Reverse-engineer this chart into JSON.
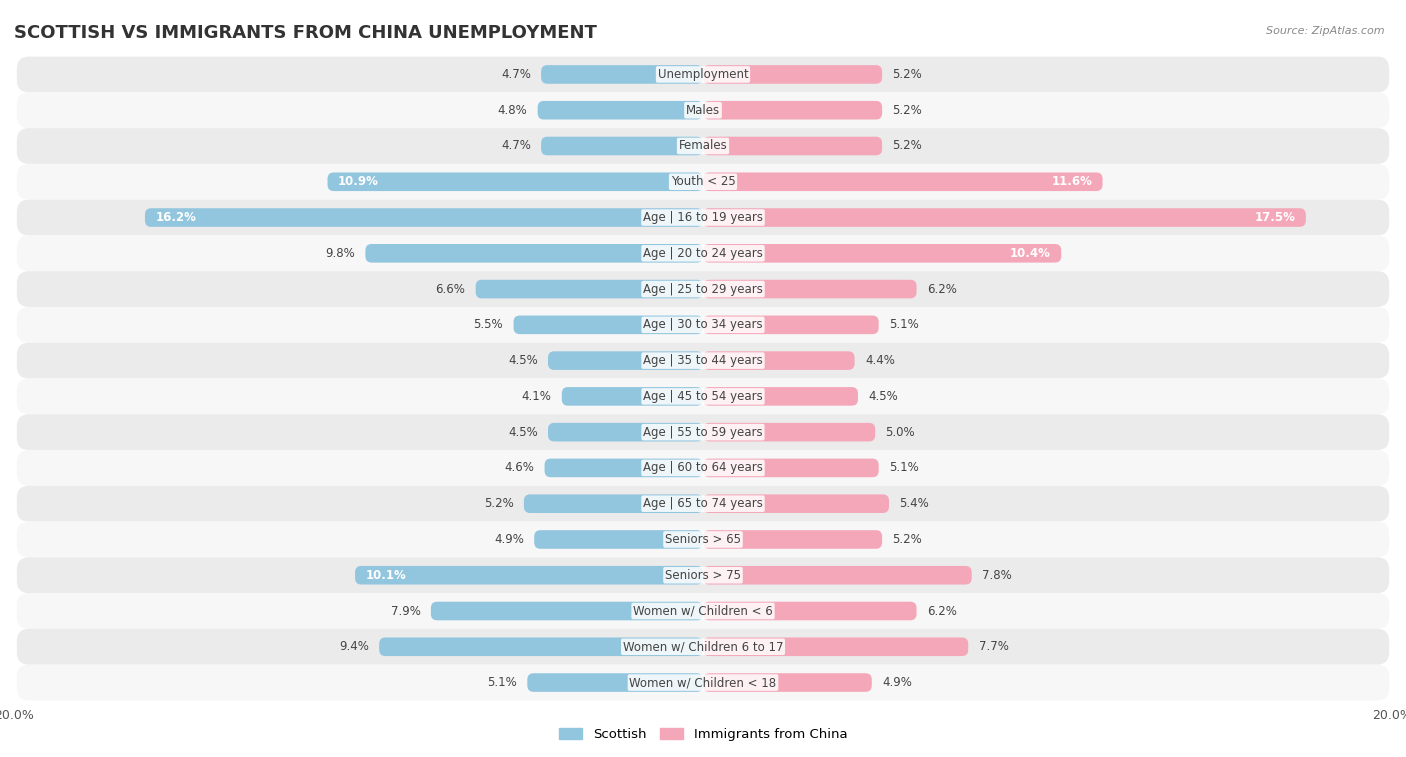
{
  "title": "SCOTTISH VS IMMIGRANTS FROM CHINA UNEMPLOYMENT",
  "source": "Source: ZipAtlas.com",
  "categories": [
    "Unemployment",
    "Males",
    "Females",
    "Youth < 25",
    "Age | 16 to 19 years",
    "Age | 20 to 24 years",
    "Age | 25 to 29 years",
    "Age | 30 to 34 years",
    "Age | 35 to 44 years",
    "Age | 45 to 54 years",
    "Age | 55 to 59 years",
    "Age | 60 to 64 years",
    "Age | 65 to 74 years",
    "Seniors > 65",
    "Seniors > 75",
    "Women w/ Children < 6",
    "Women w/ Children 6 to 17",
    "Women w/ Children < 18"
  ],
  "scottish": [
    4.7,
    4.8,
    4.7,
    10.9,
    16.2,
    9.8,
    6.6,
    5.5,
    4.5,
    4.1,
    4.5,
    4.6,
    5.2,
    4.9,
    10.1,
    7.9,
    9.4,
    5.1
  ],
  "immigrants": [
    5.2,
    5.2,
    5.2,
    11.6,
    17.5,
    10.4,
    6.2,
    5.1,
    4.4,
    4.5,
    5.0,
    5.1,
    5.4,
    5.2,
    7.8,
    6.2,
    7.7,
    4.9
  ],
  "scottish_color": "#92C5DE",
  "scottish_color_dark": "#6AAFD4",
  "immigrants_color": "#F4A7B9",
  "immigrants_color_dark": "#E8607E",
  "bar_height": 0.52,
  "xlim": 20.0,
  "background_color": "#ffffff",
  "row_even_color": "#ebebeb",
  "row_odd_color": "#f7f7f7",
  "label_color": "#444444",
  "value_color": "#444444",
  "title_fontsize": 13,
  "label_fontsize": 8.5,
  "value_fontsize": 8.5,
  "legend_fontsize": 9.5,
  "highlight_rows": [
    3,
    4
  ],
  "highlight_row_color": "#e0e0e0"
}
